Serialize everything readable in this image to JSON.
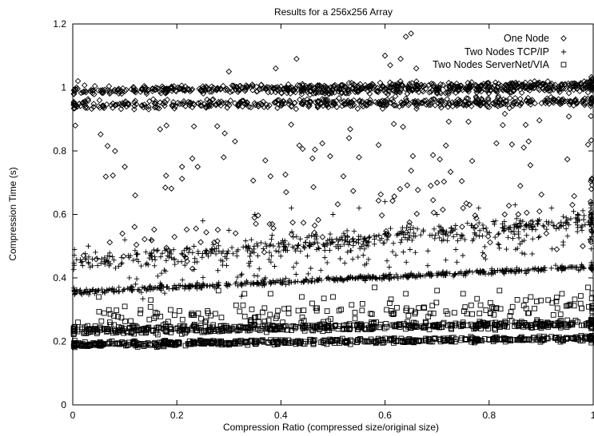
{
  "chart_data": {
    "type": "scatter",
    "title": "Results for a 256x256 Array",
    "xlabel": "Compression Ratio (compressed size/original size)",
    "ylabel": "Compression Time (s)",
    "xlim": [
      0,
      1
    ],
    "ylim": [
      0,
      1.2
    ],
    "x_ticks": [
      0,
      0.2,
      0.4,
      0.6,
      0.8,
      1
    ],
    "y_ticks": [
      0,
      0.2,
      0.4,
      0.6,
      0.8,
      1,
      1.2
    ],
    "x_tick_labels": [
      "0",
      "0.2",
      "0.4",
      "0.6",
      "0.8",
      "1"
    ],
    "y_tick_labels": [
      "0",
      "0.2",
      "0.4",
      "0.6",
      "0.8",
      "1",
      "1.2"
    ],
    "grid": false,
    "legend_position": "top-right",
    "series": [
      {
        "name": "One Node",
        "marker": "diamond",
        "bands": [
          {
            "x": [
              0.0,
              1.0
            ],
            "y0": 0.99,
            "y1": 1.01,
            "density": 1.0,
            "spread": 0.012
          },
          {
            "x": [
              0.0,
              1.0
            ],
            "y0": 0.945,
            "y1": 0.955,
            "density": 0.9,
            "spread": 0.014
          },
          {
            "x": [
              0.4,
              1.0
            ],
            "y0": 0.985,
            "y1": 0.995,
            "density": 0.6,
            "spread": 0.01
          },
          {
            "x": [
              0.02,
              1.0
            ],
            "y0": 0.5,
            "y1": 0.62,
            "density": 0.15,
            "spread": 0.08
          },
          {
            "x": [
              0.05,
              1.0
            ],
            "y0": 0.78,
            "y1": 0.78,
            "density": 0.12,
            "spread": 0.16
          }
        ],
        "points": [
          [
            0.0,
            0.48
          ],
          [
            0.0,
            0.84
          ],
          [
            0.005,
            0.88
          ],
          [
            0.01,
            1.02
          ],
          [
            0.1,
            0.75
          ],
          [
            0.12,
            0.66
          ],
          [
            0.18,
            0.88
          ],
          [
            0.21,
            0.75
          ],
          [
            0.24,
            0.75
          ],
          [
            0.29,
            0.78
          ],
          [
            0.3,
            1.05
          ],
          [
            0.37,
            0.77
          ],
          [
            0.38,
            0.72
          ],
          [
            0.39,
            1.06
          ],
          [
            0.41,
            0.67
          ],
          [
            0.43,
            1.09
          ],
          [
            0.52,
            0.72
          ],
          [
            0.55,
            0.78
          ],
          [
            0.6,
            1.1
          ],
          [
            0.61,
            1.07
          ],
          [
            0.63,
            1.09
          ],
          [
            0.64,
            1.16
          ],
          [
            0.65,
            1.17
          ],
          [
            0.66,
            1.06
          ],
          [
            0.7,
            0.7
          ],
          [
            0.75,
            0.62
          ],
          [
            0.79,
            0.47
          ],
          [
            0.83,
            0.6
          ],
          [
            0.86,
            0.69
          ],
          [
            0.91,
            0.54
          ],
          [
            0.93,
            0.49
          ],
          [
            0.96,
            0.63
          ],
          [
            0.98,
            0.5
          ],
          [
            0.99,
            0.82
          ],
          [
            1.0,
            0.74
          ]
        ]
      },
      {
        "name": "Two Nodes TCP/IP",
        "marker": "plus",
        "bands": [
          {
            "x": [
              0.0,
              1.0
            ],
            "y0": 0.355,
            "y1": 0.435,
            "density": 1.0,
            "spread": 0.008
          },
          {
            "x": [
              0.0,
              1.0
            ],
            "y0": 0.45,
            "y1": 0.58,
            "density": 0.8,
            "spread": 0.025
          },
          {
            "x": [
              0.1,
              1.0
            ],
            "y0": 0.38,
            "y1": 0.56,
            "density": 0.35,
            "spread": 0.07
          }
        ],
        "points": [
          [
            0.03,
            0.5
          ],
          [
            0.1,
            0.52
          ],
          [
            0.15,
            0.52
          ],
          [
            0.25,
            0.58
          ],
          [
            0.3,
            0.55
          ],
          [
            0.35,
            0.6
          ],
          [
            0.42,
            0.62
          ],
          [
            0.5,
            0.6
          ],
          [
            0.55,
            0.62
          ],
          [
            0.6,
            0.64
          ],
          [
            0.7,
            0.6
          ],
          [
            0.78,
            0.62
          ],
          [
            0.85,
            0.63
          ],
          [
            0.92,
            0.62
          ],
          [
            0.97,
            0.6
          ]
        ]
      },
      {
        "name": "Two Nodes ServerNet/VIA",
        "marker": "square",
        "bands": [
          {
            "x": [
              0.0,
              1.0
            ],
            "y0": 0.19,
            "y1": 0.21,
            "density": 1.0,
            "spread": 0.008
          },
          {
            "x": [
              0.0,
              1.0
            ],
            "y0": 0.235,
            "y1": 0.255,
            "density": 1.0,
            "spread": 0.012
          },
          {
            "x": [
              0.05,
              1.0
            ],
            "y0": 0.27,
            "y1": 0.31,
            "density": 0.35,
            "spread": 0.035
          }
        ],
        "points": [
          [
            0.01,
            0.26
          ],
          [
            0.05,
            0.34
          ],
          [
            0.1,
            0.31
          ],
          [
            0.15,
            0.33
          ],
          [
            0.2,
            0.37
          ],
          [
            0.28,
            0.36
          ],
          [
            0.33,
            0.35
          ],
          [
            0.38,
            0.35
          ],
          [
            0.44,
            0.34
          ],
          [
            0.5,
            0.34
          ],
          [
            0.58,
            0.37
          ],
          [
            0.64,
            0.35
          ],
          [
            0.7,
            0.36
          ],
          [
            0.75,
            0.35
          ],
          [
            0.82,
            0.36
          ],
          [
            0.88,
            0.34
          ],
          [
            0.94,
            0.35
          ],
          [
            0.99,
            0.37
          ]
        ]
      }
    ]
  }
}
